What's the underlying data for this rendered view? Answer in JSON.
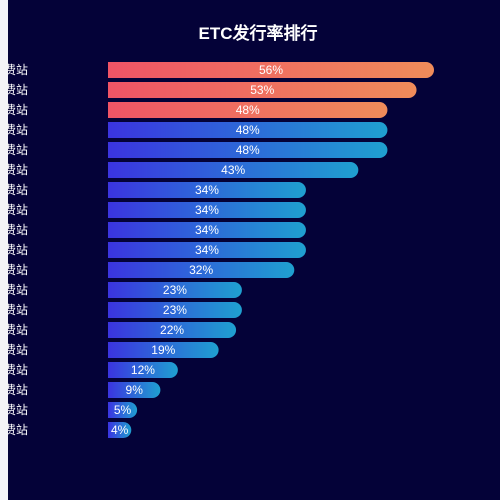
{
  "colors": {
    "background": "#040238",
    "top_gradient": [
      "#f05466",
      "#f08c5a"
    ],
    "rest_gradient": [
      "#3b34e0",
      "#1fa0d0"
    ]
  },
  "chart_data": {
    "type": "bar",
    "orientation": "horizontal",
    "title": "ETC发行率排行",
    "categories": [
      "费站",
      "费站",
      "费站",
      "费站",
      "费站",
      "费站",
      "费站",
      "费站",
      "费站",
      "费站",
      "费站",
      "费站收费站",
      "费站",
      "费站收费站",
      "费站",
      "费站",
      "费站",
      "费站",
      "费站"
    ],
    "values": [
      56,
      53,
      48,
      48,
      48,
      43,
      34,
      34,
      34,
      34,
      32,
      23,
      23,
      22,
      19,
      12,
      9,
      5,
      4
    ],
    "value_suffix": "%",
    "highlight_top_n": 3,
    "xlim": [
      0,
      56
    ],
    "grid": false,
    "legend": "none"
  }
}
